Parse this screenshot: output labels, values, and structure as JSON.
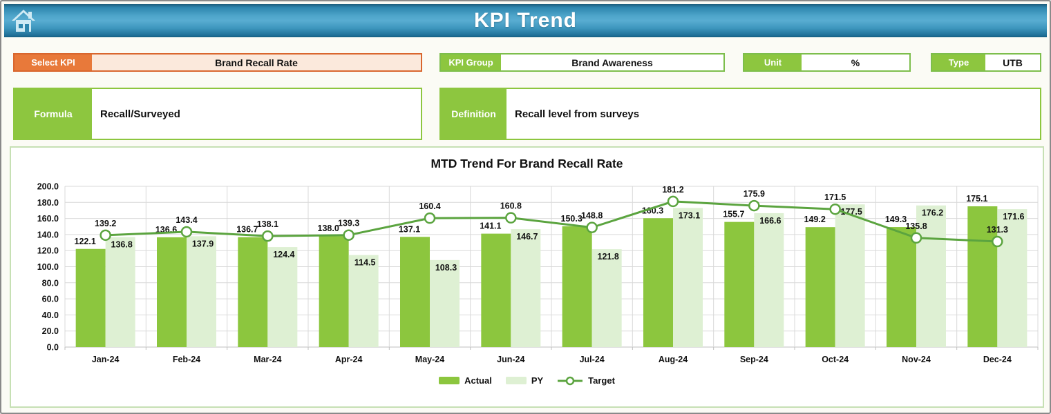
{
  "header": {
    "title": "KPI Trend"
  },
  "controls": {
    "select_kpi": {
      "label": "Select KPI",
      "value": "Brand Recall Rate"
    },
    "kpi_group": {
      "label": "KPI Group",
      "value": "Brand Awareness"
    },
    "unit": {
      "label": "Unit",
      "value": "%"
    },
    "type": {
      "label": "Type",
      "value": "UTB"
    }
  },
  "formula": {
    "label": "Formula",
    "value": "Recall/Surveyed"
  },
  "definition": {
    "label": "Definition",
    "value": "Recall level from surveys"
  },
  "chart_data": {
    "type": "bar",
    "subtype": "grouped-bars-with-target-line",
    "title": "MTD Trend For Brand Recall Rate",
    "categories": [
      "Jan-24",
      "Feb-24",
      "Mar-24",
      "Apr-24",
      "May-24",
      "Jun-24",
      "Jul-24",
      "Aug-24",
      "Sep-24",
      "Oct-24",
      "Nov-24",
      "Dec-24"
    ],
    "series": [
      {
        "name": "Actual",
        "type": "bar",
        "color": "#8cc63e",
        "values": [
          122.1,
          136.6,
          136.7,
          138.0,
          137.1,
          141.1,
          150.3,
          160.3,
          155.7,
          149.2,
          149.3,
          175.1
        ]
      },
      {
        "name": "PY",
        "type": "bar",
        "color": "#def0d3",
        "values": [
          136.8,
          137.9,
          124.4,
          114.5,
          108.3,
          146.7,
          121.8,
          173.1,
          166.6,
          177.5,
          176.2,
          171.6
        ]
      },
      {
        "name": "Target",
        "type": "line",
        "color": "#5ba43f",
        "marker": "circle",
        "values": [
          139.2,
          143.4,
          138.1,
          139.3,
          160.4,
          160.8,
          148.8,
          181.2,
          175.9,
          171.5,
          135.8,
          131.3
        ]
      }
    ],
    "ylim": [
      0,
      200
    ],
    "ytick_step": 20,
    "ytick_format": "one_decimal",
    "grid": true,
    "legend_position": "bottom",
    "data_labels": true
  },
  "colors": {
    "accent_orange": "#e8793a",
    "accent_orange_fill": "#fbe9dc",
    "accent_green": "#8dc63f",
    "panel_border_green": "#c6e0b4",
    "gridline": "#d9d9d9",
    "header_blue_mid": "#58acd1"
  }
}
